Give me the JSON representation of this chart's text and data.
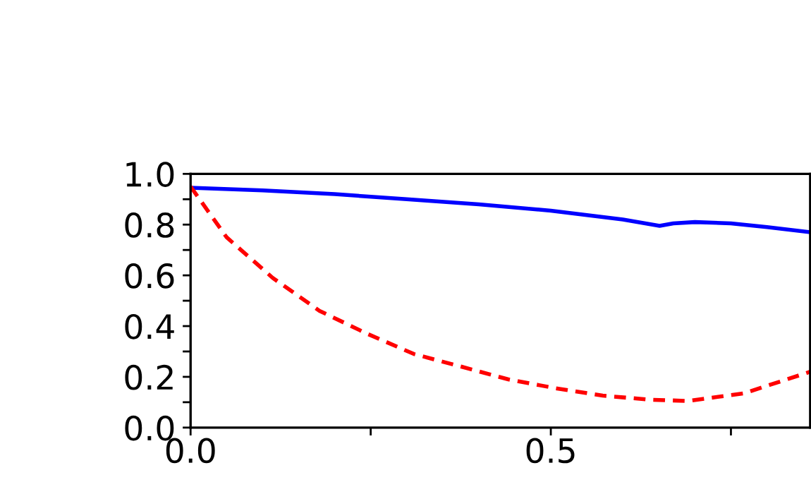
{
  "chart_data": {
    "type": "line",
    "xlim": [
      0,
      0.86
    ],
    "ylim": [
      0,
      1.0
    ],
    "xticks": [
      {
        "value": 0,
        "label": "0.0"
      },
      {
        "value": 0.25,
        "label": null
      },
      {
        "value": 0.5,
        "label": "0.5"
      },
      {
        "value": 0.75,
        "label": null
      }
    ],
    "yticks": [
      {
        "value": 0,
        "label": "0.0"
      },
      {
        "value": 0.1,
        "label": null
      },
      {
        "value": 0.2,
        "label": "0.2"
      },
      {
        "value": 0.3,
        "label": null
      },
      {
        "value": 0.4,
        "label": "0.4"
      },
      {
        "value": 0.5,
        "label": null
      },
      {
        "value": 0.6,
        "label": "0.6"
      },
      {
        "value": 0.7,
        "label": null
      },
      {
        "value": 0.8,
        "label": "0.8"
      },
      {
        "value": 0.9,
        "label": null
      },
      {
        "value": 1.0,
        "label": "1.0"
      }
    ],
    "grid": false,
    "marker": "none",
    "series": [
      {
        "color": "#0000ff",
        "line_style": "solid",
        "x": [
          0,
          0.1,
          0.2,
          0.3,
          0.4,
          0.5,
          0.6,
          0.651,
          0.67,
          0.7,
          0.75,
          0.8,
          0.86
        ],
        "values": [
          0.945,
          0.935,
          0.92,
          0.9,
          0.88,
          0.855,
          0.82,
          0.795,
          0.805,
          0.81,
          0.805,
          0.79,
          0.77
        ]
      },
      {
        "color": "#ff0000",
        "line_style": "dashed",
        "x": [
          0,
          0.05,
          0.114,
          0.179,
          0.245,
          0.31,
          0.376,
          0.441,
          0.507,
          0.572,
          0.637,
          0.69,
          0.768,
          0.86
        ],
        "values": [
          0.95,
          0.75,
          0.59,
          0.46,
          0.37,
          0.29,
          0.24,
          0.19,
          0.155,
          0.126,
          0.11,
          0.105,
          0.135,
          0.22
        ]
      }
    ]
  }
}
